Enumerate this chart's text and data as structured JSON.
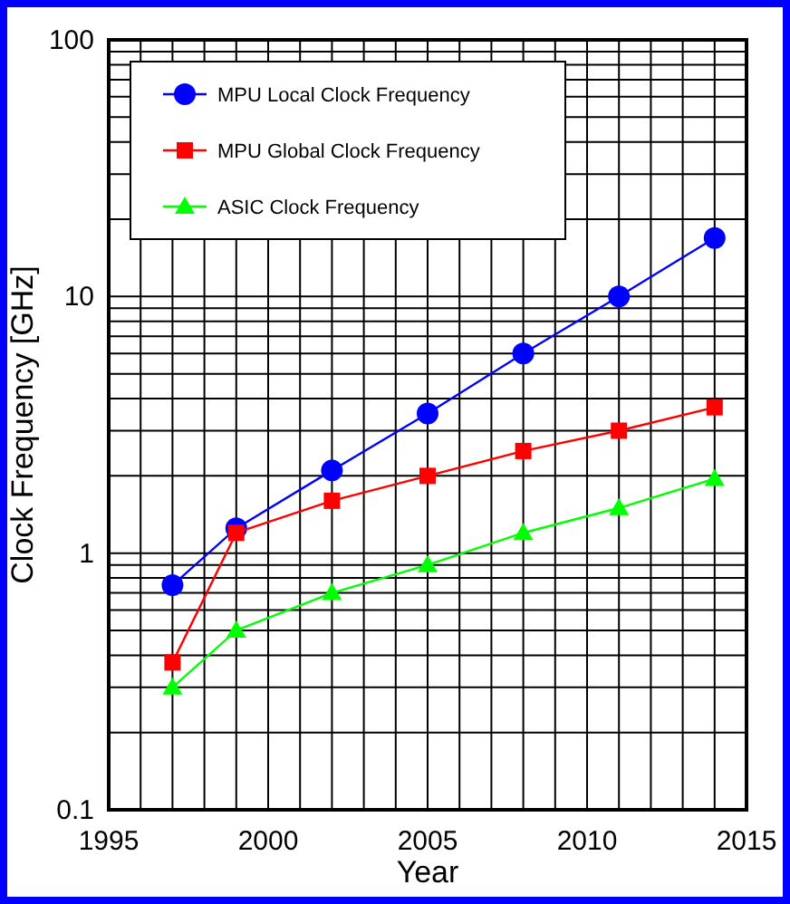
{
  "chart_data": {
    "type": "line",
    "xlabel": "Year",
    "ylabel": "Clock Frequency [GHz]",
    "log": "y",
    "grid": true,
    "legend": "top left",
    "line_style": "solid",
    "xlim": [
      1995,
      2015
    ],
    "ylim": [
      0.1,
      100
    ],
    "xticks": [
      1995,
      {
        "value": 1996,
        "label": null
      },
      {
        "value": 1997,
        "label": null
      },
      {
        "value": 1998,
        "label": null
      },
      {
        "value": 1999,
        "label": null
      },
      2000,
      {
        "value": 2001,
        "label": null
      },
      {
        "value": 2002,
        "label": null
      },
      {
        "value": 2003,
        "label": null
      },
      {
        "value": 2004,
        "label": null
      },
      2005,
      {
        "value": 2006,
        "label": null
      },
      {
        "value": 2007,
        "label": null
      },
      {
        "value": 2008,
        "label": null
      },
      {
        "value": 2009,
        "label": null
      },
      2010,
      {
        "value": 2011,
        "label": null
      },
      {
        "value": 2012,
        "label": null
      },
      {
        "value": 2013,
        "label": null
      },
      {
        "value": 2014,
        "label": null
      },
      2015
    ],
    "yticks": [
      0.1,
      {
        "value": 0.2,
        "label": null
      },
      {
        "value": 0.3,
        "label": null
      },
      {
        "value": 0.4,
        "label": null
      },
      {
        "value": 0.5,
        "label": null
      },
      {
        "value": 0.6,
        "label": null
      },
      {
        "value": 0.7,
        "label": null
      },
      {
        "value": 0.8,
        "label": null
      },
      {
        "value": 0.9,
        "label": null
      },
      1,
      {
        "value": 2,
        "label": null
      },
      {
        "value": 3,
        "label": null
      },
      {
        "value": 4,
        "label": null
      },
      {
        "value": 5,
        "label": null
      },
      {
        "value": 6,
        "label": null
      },
      {
        "value": 7,
        "label": null
      },
      {
        "value": 8,
        "label": null
      },
      {
        "value": 9,
        "label": null
      },
      10,
      {
        "value": 20,
        "label": null
      },
      {
        "value": 30,
        "label": null
      },
      {
        "value": 40,
        "label": null
      },
      {
        "value": 50,
        "label": null
      },
      {
        "value": 60,
        "label": null
      },
      {
        "value": 70,
        "label": null
      },
      {
        "value": 80,
        "label": null
      },
      {
        "value": 90,
        "label": null
      },
      100
    ],
    "x": [
      1997,
      1999,
      2002,
      2005,
      2008,
      2011,
      2014
    ],
    "series": [
      {
        "name": "MPU Local Clock Frequency",
        "color": "#0000ff",
        "marker": "circle",
        "values": [
          0.75,
          1.25,
          2.1,
          3.5,
          6.0,
          10.0,
          16.9
        ]
      },
      {
        "name": "MPU Global Clock Frequency",
        "color": "#ff0000",
        "marker": "square",
        "values": [
          0.375,
          1.2,
          1.6,
          2.0,
          2.5,
          3.0,
          3.7
        ]
      },
      {
        "name": "ASIC Clock Frequency",
        "color": "#00ff00",
        "marker": "triangle",
        "values": [
          0.3,
          0.5,
          0.7,
          0.9,
          1.2,
          1.5,
          1.95
        ]
      }
    ]
  }
}
